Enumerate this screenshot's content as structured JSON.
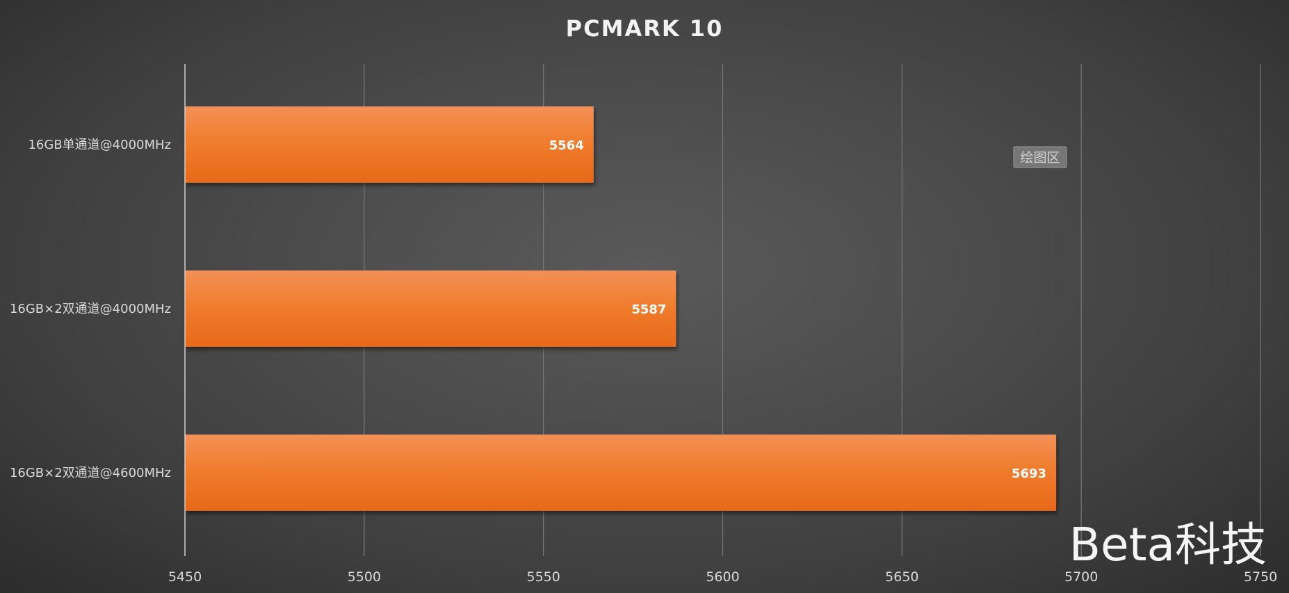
{
  "chart_data": {
    "type": "bar",
    "orientation": "horizontal",
    "title": "PCMARK 10",
    "categories": [
      "16GB单通道@4000MHz",
      "16GB×2双通道@4000MHz",
      "16GB×2双通道@4600MHz"
    ],
    "values": [
      5564,
      5587,
      5693
    ],
    "xlim": [
      5450,
      5750
    ],
    "xticks": [
      5450,
      5500,
      5550,
      5600,
      5650,
      5700,
      5750
    ],
    "grid": true,
    "legend": "none",
    "bar_color": "#ee7a2a",
    "data_labels": true
  },
  "overlays": {
    "plot_area_tag": "绘图区",
    "watermark": "Beta科技"
  },
  "colors": {
    "background": "#4a4a4a",
    "bar": "#ee7a2a",
    "text": "#d9d9d9"
  }
}
